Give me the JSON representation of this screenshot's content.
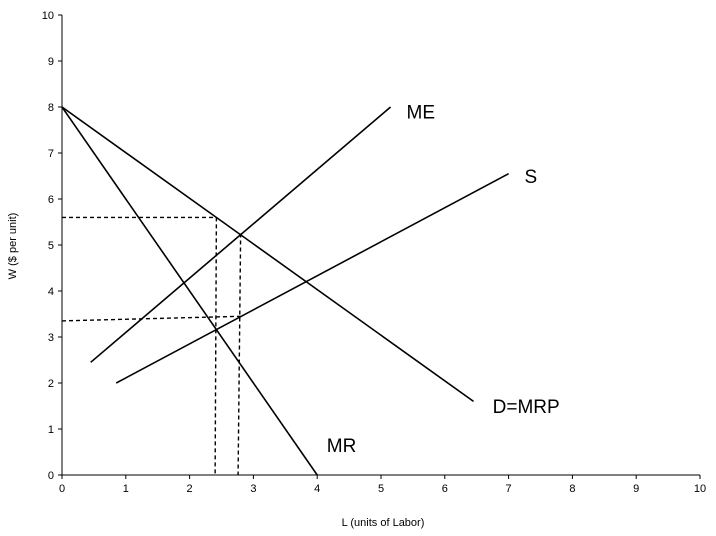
{
  "chart_data": {
    "type": "line",
    "xlabel": "L (units of Labor)",
    "ylabel": "W ($ per unit)",
    "xlim": [
      0,
      10
    ],
    "ylim": [
      0,
      10
    ],
    "xticks": [
      0,
      1,
      2,
      3,
      4,
      5,
      6,
      7,
      8,
      9,
      10
    ],
    "yticks": [
      0,
      1,
      2,
      3,
      4,
      5,
      6,
      7,
      8,
      9,
      10
    ],
    "grid": false,
    "series": [
      {
        "name": "ME",
        "points": [
          [
            0.45,
            2.45
          ],
          [
            5.15,
            8.0
          ]
        ]
      },
      {
        "name": "S",
        "points": [
          [
            0.85,
            2.0
          ],
          [
            7.0,
            6.55
          ]
        ]
      },
      {
        "name": "D=MRP",
        "points": [
          [
            0.0,
            8.0
          ],
          [
            6.45,
            1.6
          ]
        ]
      },
      {
        "name": "MR",
        "points": [
          [
            0.0,
            8.0
          ],
          [
            4.0,
            0.0
          ]
        ]
      }
    ],
    "guides": [
      {
        "points": [
          [
            0.0,
            5.6
          ],
          [
            2.42,
            5.6
          ]
        ]
      },
      {
        "points": [
          [
            2.42,
            5.6
          ],
          [
            2.4,
            0.0
          ]
        ]
      },
      {
        "points": [
          [
            0.0,
            3.35
          ],
          [
            2.8,
            3.45
          ]
        ]
      },
      {
        "points": [
          [
            2.8,
            5.25
          ],
          [
            2.76,
            0.0
          ]
        ]
      }
    ],
    "annotations": [
      {
        "text": "ME",
        "x": 5.4,
        "y": 7.75
      },
      {
        "text": "S",
        "x": 7.25,
        "y": 6.35
      },
      {
        "text": "D=MRP",
        "x": 6.75,
        "y": 1.35
      },
      {
        "text": "MR",
        "x": 4.15,
        "y": 0.5
      }
    ]
  }
}
